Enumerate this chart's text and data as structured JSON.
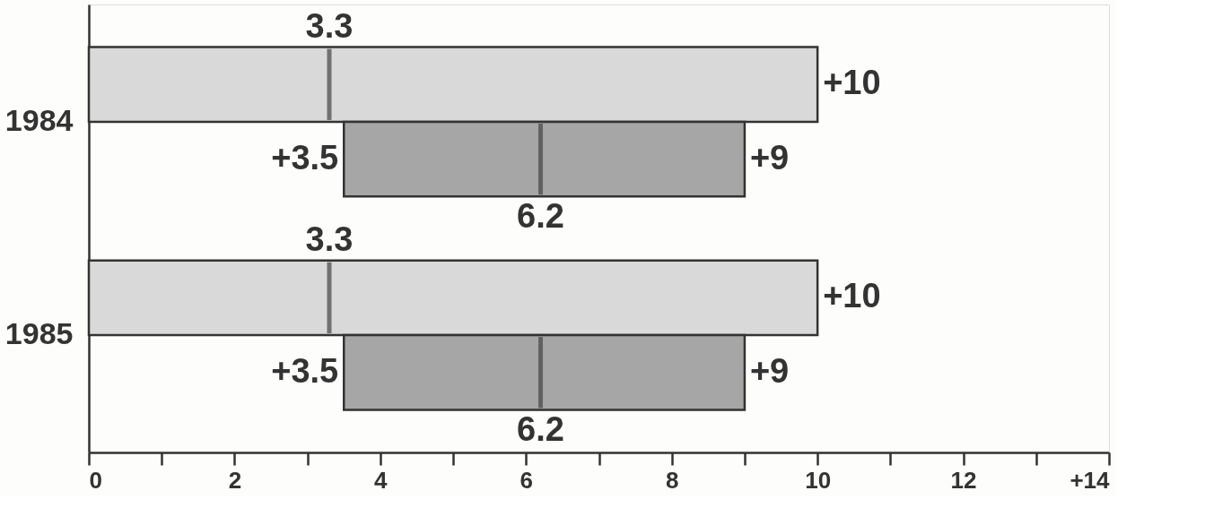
{
  "chart_data": {
    "type": "box",
    "orientation": "horizontal",
    "categories": [
      "1984",
      "1985"
    ],
    "series": [
      {
        "color": "#d9d9d9",
        "boxes": [
          {
            "low": 0,
            "q1": 0,
            "median": 3.3,
            "q3": 10,
            "high": 10
          },
          {
            "low": 0,
            "q1": 0,
            "median": 3.3,
            "q3": 10,
            "high": 10
          }
        ]
      },
      {
        "color": "#a6a6a6",
        "boxes": [
          {
            "low": 3.5,
            "q1": 3.5,
            "median": 6.2,
            "q3": 9,
            "high": 9
          },
          {
            "low": 3.5,
            "q1": 3.5,
            "median": 6.2,
            "q3": 9,
            "high": 9
          }
        ]
      }
    ],
    "xlim": [
      0,
      14
    ],
    "xticks": [
      0,
      {
        "value": 1,
        "label": null
      },
      2,
      {
        "value": 3,
        "label": null
      },
      4,
      {
        "value": 5,
        "label": null
      },
      6,
      {
        "value": 7,
        "label": null
      },
      8,
      {
        "value": 9,
        "label": null
      },
      10,
      {
        "value": 11,
        "label": null
      },
      12,
      {
        "value": 13,
        "label": null
      },
      {
        "value": 14,
        "label": "+14"
      }
    ],
    "annotations": [
      {
        "text": "3.3",
        "x": 3.3,
        "y": "1984"
      },
      {
        "text": "+10",
        "x": 10,
        "y": "1984"
      },
      {
        "text": "+3.5",
        "x": 3.5,
        "y": "1984"
      },
      {
        "text": "+9",
        "x": 9,
        "y": "1984"
      },
      {
        "text": "6.2",
        "x": 6.2,
        "y": "1984"
      },
      {
        "text": "3.3",
        "x": 3.3,
        "y": "1985"
      },
      {
        "text": "+10",
        "x": 10,
        "y": "1985"
      },
      {
        "text": "+3.5",
        "x": 3.5,
        "y": "1985"
      },
      {
        "text": "+9",
        "x": 9,
        "y": "1985"
      },
      {
        "text": "6.2",
        "x": 6.2,
        "y": "1985"
      }
    ],
    "grid": false,
    "legend": false
  }
}
